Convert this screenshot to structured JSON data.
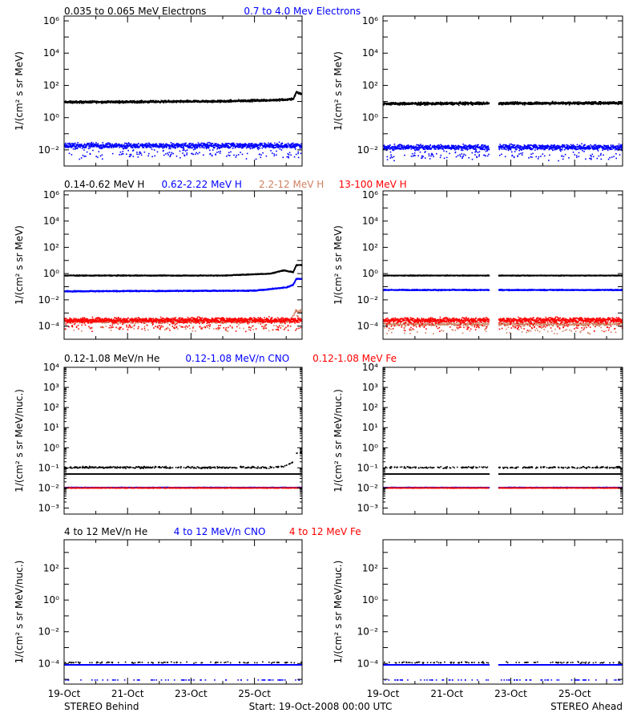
{
  "colors": {
    "black": "#000000",
    "blue": "#0000ff",
    "salmon": "#d08060",
    "red": "#ff0000",
    "grey": "#808080"
  },
  "footer": {
    "left": "STEREO Behind",
    "center": "Start: 19-Oct-2008 00:00 UTC",
    "right": "STEREO Ahead"
  },
  "chart_data": [
    {
      "id": "electrons",
      "type": "scatter",
      "log_y": true,
      "xlim": [
        0,
        7.5
      ],
      "x_ticks": [
        "19-Oct",
        "21-Oct",
        "23-Oct",
        "25-Oct"
      ],
      "ylabel": "1/(cm² s sr MeV)",
      "ylim_exp": [
        -3,
        6.3
      ],
      "y_ticks": [
        {
          "exp": -2,
          "label": "10⁻²"
        },
        {
          "exp": 0,
          "label": "10⁰"
        },
        {
          "exp": 2,
          "label": "10²"
        },
        {
          "exp": 4,
          "label": "10⁴"
        },
        {
          "exp": 6,
          "label": "10⁶"
        }
      ],
      "legend": [
        {
          "text": "0.035 to 0.065 MeV Electrons",
          "color": "#000000"
        },
        {
          "text": "0.7 to 4.0 Mev Electrons",
          "color": "#0000ff"
        }
      ],
      "panels": [
        {
          "name": "STEREO Behind",
          "series": [
            {
              "name": "0.035 to 0.065 MeV Electrons",
              "color": "#000000",
              "profile": [
                [
                  0,
                  1.0
                ],
                [
                  5,
                  1.05
                ],
                [
                  7.0,
                  1.15
                ],
                [
                  7.2,
                  1.2
                ],
                [
                  7.3,
                  1.6
                ],
                [
                  7.5,
                  1.5
                ]
              ],
              "spread": 0.1,
              "density": 1.0,
              "gaps": []
            },
            {
              "name": "0.7 to 4.0 Mev Electrons",
              "color": "#0000ff",
              "profile": [
                [
                  0,
                  -1.7
                ],
                [
                  7.5,
                  -1.7
                ]
              ],
              "spread": 0.25,
              "density": 1.0,
              "gaps": []
            }
          ]
        },
        {
          "name": "STEREO Ahead",
          "series": [
            {
              "name": "0.035 to 0.065 MeV Electrons",
              "color": "#000000",
              "profile": [
                [
                  0,
                  0.9
                ],
                [
                  7.5,
                  0.95
                ]
              ],
              "spread": 0.12,
              "density": 1.0,
              "gaps": [
                [
                  3.3,
                  3.6
                ]
              ]
            },
            {
              "name": "0.7 to 4.0 Mev Electrons",
              "color": "#0000ff",
              "profile": [
                [
                  0,
                  -1.8
                ],
                [
                  7.5,
                  -1.8
                ]
              ],
              "spread": 0.25,
              "density": 1.0,
              "gaps": [
                [
                  3.3,
                  3.6
                ]
              ]
            }
          ]
        }
      ]
    },
    {
      "id": "protons",
      "type": "scatter",
      "log_y": true,
      "xlim": [
        0,
        7.5
      ],
      "x_ticks": [
        "19-Oct",
        "21-Oct",
        "23-Oct",
        "25-Oct"
      ],
      "ylabel": "1/(cm² s sr MeV)",
      "ylim_exp": [
        -5,
        6.3
      ],
      "y_ticks": [
        {
          "exp": -4,
          "label": "10⁻⁴"
        },
        {
          "exp": -2,
          "label": "10⁻²"
        },
        {
          "exp": 0,
          "label": "10⁰"
        },
        {
          "exp": 2,
          "label": "10²"
        },
        {
          "exp": 4,
          "label": "10⁴"
        },
        {
          "exp": 6,
          "label": "10⁶"
        }
      ],
      "legend": [
        {
          "text": "0.14-0.62 MeV H",
          "color": "#000000"
        },
        {
          "text": "0.62-2.22 MeV H",
          "color": "#0000ff"
        },
        {
          "text": "2.2-12 MeV H",
          "color": "#d08060"
        },
        {
          "text": "13-100 MeV H",
          "color": "#ff0000"
        }
      ],
      "panels": [
        {
          "name": "STEREO Behind",
          "series": [
            {
              "name": "0.14-0.62 MeV H",
              "color": "#000000",
              "profile": [
                [
                  0,
                  -0.1
                ],
                [
                  5,
                  -0.1
                ],
                [
                  6.5,
                  0.05
                ],
                [
                  6.9,
                  0.3
                ],
                [
                  7.2,
                  0.15
                ],
                [
                  7.3,
                  0.7
                ],
                [
                  7.5,
                  0.7
                ]
              ],
              "spread": 0.05,
              "density": 1.0,
              "gaps": []
            },
            {
              "name": "0.62-2.22 MeV H",
              "color": "#0000ff",
              "profile": [
                [
                  0,
                  -1.3
                ],
                [
                  6,
                  -1.25
                ],
                [
                  7.0,
                  -1.0
                ],
                [
                  7.2,
                  -0.8
                ],
                [
                  7.3,
                  -0.35
                ],
                [
                  7.5,
                  -0.35
                ]
              ],
              "spread": 0.06,
              "density": 1.0,
              "gaps": []
            },
            {
              "name": "2.2-12 MeV H",
              "color": "#d08060",
              "profile": [
                [
                  0,
                  -3.6
                ],
                [
                  7.1,
                  -3.6
                ],
                [
                  7.3,
                  -2.8
                ],
                [
                  7.5,
                  -2.8
                ]
              ],
              "spread": 0.2,
              "density": 0.6,
              "gaps": []
            },
            {
              "name": "13-100 MeV H",
              "color": "#ff0000",
              "profile": [
                [
                  0,
                  -3.5
                ],
                [
                  7.5,
                  -3.5
                ]
              ],
              "spread": 0.3,
              "density": 1.0,
              "gaps": []
            }
          ]
        },
        {
          "name": "STEREO Ahead",
          "series": [
            {
              "name": "0.14-0.62 MeV H",
              "color": "#000000",
              "profile": [
                [
                  0,
                  -0.1
                ],
                [
                  7.5,
                  -0.1
                ]
              ],
              "spread": 0.04,
              "density": 1.0,
              "gaps": [
                [
                  3.3,
                  3.6
                ]
              ]
            },
            {
              "name": "0.62-2.22 MeV H",
              "color": "#0000ff",
              "profile": [
                [
                  0,
                  -1.2
                ],
                [
                  7.5,
                  -1.2
                ]
              ],
              "spread": 0.06,
              "density": 1.0,
              "gaps": [
                [
                  3.3,
                  3.6
                ]
              ]
            },
            {
              "name": "2.2-12 MeV H",
              "color": "#d08060",
              "profile": [
                [
                  0,
                  -3.8
                ],
                [
                  7.5,
                  -3.8
                ]
              ],
              "spread": 0.2,
              "density": 0.6,
              "gaps": [
                [
                  3.3,
                  3.6
                ]
              ]
            },
            {
              "name": "13-100 MeV H",
              "color": "#ff0000",
              "profile": [
                [
                  0,
                  -3.5
                ],
                [
                  7.5,
                  -3.5
                ]
              ],
              "spread": 0.3,
              "density": 1.0,
              "gaps": [
                [
                  3.3,
                  3.6
                ]
              ]
            }
          ]
        }
      ]
    },
    {
      "id": "heavy-low",
      "type": "scatter",
      "log_y": true,
      "xlim": [
        0,
        7.5
      ],
      "x_ticks": [
        "19-Oct",
        "21-Oct",
        "23-Oct",
        "25-Oct"
      ],
      "ylabel": "1/(cm² s sr MeV/nuc.)",
      "ylim_exp": [
        -3.3,
        4
      ],
      "y_ticks": [
        {
          "exp": -3,
          "label": "10⁻³"
        },
        {
          "exp": -2,
          "label": "10⁻²"
        },
        {
          "exp": -1,
          "label": "10⁻¹"
        },
        {
          "exp": 0,
          "label": "10⁰"
        },
        {
          "exp": 1,
          "label": "10¹"
        },
        {
          "exp": 2,
          "label": "10²"
        },
        {
          "exp": 3,
          "label": "10³"
        },
        {
          "exp": 4,
          "label": "10⁴"
        }
      ],
      "legend": [
        {
          "text": "0.12-1.08 MeV/n He",
          "color": "#000000"
        },
        {
          "text": "0.12-1.08 MeV/n CNO",
          "color": "#0000ff"
        },
        {
          "text": "0.12-1.08 MeV Fe",
          "color": "#ff0000"
        }
      ],
      "panels": [
        {
          "name": "STEREO Behind",
          "series": [
            {
              "name": "0.12-1.08 MeV/n He floor",
              "color": "#000000",
              "profile": [
                [
                  0,
                  -1.28
                ],
                [
                  7.5,
                  -1.28
                ]
              ],
              "spread": 0.0,
              "density": 1.0,
              "gaps": []
            },
            {
              "name": "0.12-1.08 MeV/n He",
              "color": "#000000",
              "profile": [
                [
                  0,
                  -0.95
                ],
                [
                  6.5,
                  -0.95
                ],
                [
                  6.9,
                  -0.9
                ],
                [
                  7.2,
                  -0.7
                ],
                [
                  7.3,
                  -0.25
                ],
                [
                  7.5,
                  -0.2
                ]
              ],
              "spread": 0.07,
              "density": 0.25,
              "gaps": []
            },
            {
              "name": "0.12-1.08 MeV/n CNO",
              "color": "#0000ff",
              "profile": [
                [
                  0,
                  -1.95
                ],
                [
                  7.5,
                  -1.95
                ]
              ],
              "spread": 0.02,
              "density": 0.9,
              "gaps": []
            },
            {
              "name": "0.12-1.08 MeV Fe",
              "color": "#ff0000",
              "profile": [
                [
                  0,
                  -1.97
                ],
                [
                  7.5,
                  -1.97
                ]
              ],
              "spread": 0.02,
              "density": 0.5,
              "gaps": []
            }
          ]
        },
        {
          "name": "STEREO Ahead",
          "series": [
            {
              "name": "0.12-1.08 MeV/n He floor",
              "color": "#000000",
              "profile": [
                [
                  0,
                  -1.28
                ],
                [
                  7.5,
                  -1.28
                ]
              ],
              "spread": 0.0,
              "density": 1.0,
              "gaps": [
                [
                  3.3,
                  3.6
                ]
              ]
            },
            {
              "name": "0.12-1.08 MeV/n He",
              "color": "#000000",
              "profile": [
                [
                  0,
                  -0.95
                ],
                [
                  7.5,
                  -0.95
                ]
              ],
              "spread": 0.07,
              "density": 0.2,
              "gaps": [
                [
                  3.3,
                  3.6
                ]
              ]
            },
            {
              "name": "0.12-1.08 MeV/n CNO",
              "color": "#0000ff",
              "profile": [
                [
                  0,
                  -1.95
                ],
                [
                  7.5,
                  -1.95
                ]
              ],
              "spread": 0.02,
              "density": 0.9,
              "gaps": [
                [
                  3.3,
                  3.6
                ]
              ]
            },
            {
              "name": "0.12-1.08 MeV Fe",
              "color": "#ff0000",
              "profile": [
                [
                  0,
                  -1.97
                ],
                [
                  7.5,
                  -1.97
                ]
              ],
              "spread": 0.02,
              "density": 0.5,
              "gaps": [
                [
                  3.3,
                  3.6
                ]
              ]
            }
          ]
        }
      ]
    },
    {
      "id": "heavy-high",
      "type": "scatter",
      "log_y": true,
      "xlim": [
        0,
        7.5
      ],
      "x_ticks": [
        "19-Oct",
        "21-Oct",
        "23-Oct",
        "25-Oct"
      ],
      "ylabel": "1/(cm² s sr MeV/nuc.)",
      "ylim_exp": [
        -5.3,
        3.8
      ],
      "y_ticks": [
        {
          "exp": -4,
          "label": "10⁻⁴"
        },
        {
          "exp": -2,
          "label": "10⁻²"
        },
        {
          "exp": 0,
          "label": "10⁰"
        },
        {
          "exp": 2,
          "label": "10²"
        }
      ],
      "legend": [
        {
          "text": "4 to 12 MeV/n He",
          "color": "#000000"
        },
        {
          "text": "4 to 12 MeV/n CNO",
          "color": "#0000ff"
        },
        {
          "text": "4 to 12 MeV Fe",
          "color": "#ff0000"
        }
      ],
      "panels": [
        {
          "name": "STEREO Behind",
          "series": [
            {
              "name": "4 to 12 MeV/n CNO",
              "color": "#0000ff",
              "profile": [
                [
                  0,
                  -4.05
                ],
                [
                  7.5,
                  -4.05
                ]
              ],
              "spread": 0.0,
              "density": 1.0,
              "gaps": []
            },
            {
              "name": "4 to 12 MeV/n He",
              "color": "#000000",
              "profile": [
                [
                  0,
                  -3.9
                ],
                [
                  7.5,
                  -3.9
                ]
              ],
              "spread": 0.06,
              "density": 0.08,
              "gaps": []
            },
            {
              "name": "4 to 12 MeV/n CNO low",
              "color": "#0000ff",
              "profile": [
                [
                  0,
                  -5.0
                ],
                [
                  7.5,
                  -5.0
                ]
              ],
              "spread": 0.0,
              "density": 0.05,
              "gaps": []
            }
          ]
        },
        {
          "name": "STEREO Ahead",
          "series": [
            {
              "name": "4 to 12 MeV/n CNO",
              "color": "#0000ff",
              "profile": [
                [
                  0,
                  -4.05
                ],
                [
                  7.5,
                  -4.05
                ]
              ],
              "spread": 0.0,
              "density": 1.0,
              "gaps": [
                [
                  3.3,
                  3.6
                ]
              ]
            },
            {
              "name": "4 to 12 MeV/n He",
              "color": "#000000",
              "profile": [
                [
                  0,
                  -3.9
                ],
                [
                  7.5,
                  -3.9
                ]
              ],
              "spread": 0.06,
              "density": 0.08,
              "gaps": [
                [
                  3.3,
                  3.6
                ]
              ]
            },
            {
              "name": "4 to 12 MeV/n CNO low",
              "color": "#0000ff",
              "profile": [
                [
                  0,
                  -5.0
                ],
                [
                  7.5,
                  -5.0
                ]
              ],
              "spread": 0.0,
              "density": 0.05,
              "gaps": [
                [
                  3.3,
                  3.6
                ]
              ]
            }
          ]
        }
      ]
    }
  ]
}
